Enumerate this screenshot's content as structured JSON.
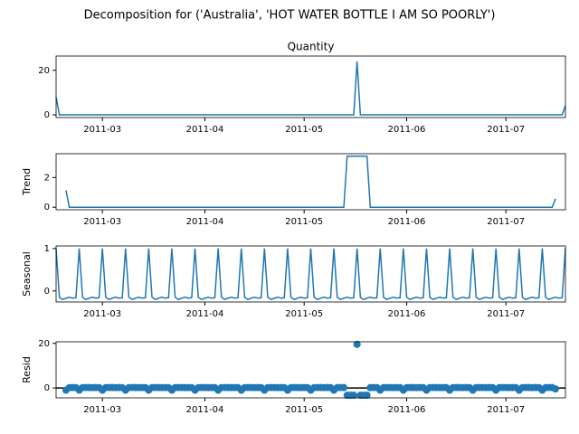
{
  "title": "Decomposition for ('Australia', 'HOT WATER BOTTLE I AM SO POORLY')",
  "chart_data": [
    {
      "type": "line",
      "title": "Quantity",
      "color": "#1f77b4",
      "x": [
        0,
        1,
        2,
        3,
        4,
        5,
        6,
        7,
        8,
        9,
        10,
        11,
        12,
        13,
        14,
        15,
        16,
        17,
        18,
        19,
        20,
        21,
        22,
        23,
        24,
        25,
        26,
        27,
        28,
        29,
        30,
        31,
        32,
        33,
        34,
        35,
        36,
        37,
        38,
        39,
        40,
        41,
        42,
        43,
        44,
        45,
        46,
        47,
        48,
        49,
        50,
        51,
        52,
        53,
        54,
        55,
        56,
        57,
        58,
        59,
        60,
        61,
        62,
        63,
        64,
        65,
        66,
        67,
        68,
        69,
        70,
        71,
        72,
        73,
        74,
        75,
        76,
        77,
        78,
        79,
        80,
        81,
        82,
        83,
        84,
        85,
        86,
        87,
        88,
        89,
        90,
        91,
        92,
        93,
        94,
        95,
        96,
        97,
        98,
        99,
        100,
        101,
        102,
        103,
        104,
        105,
        106,
        107,
        108,
        109,
        110,
        111,
        112,
        113,
        114,
        115,
        116,
        117,
        118,
        119,
        120,
        121,
        122,
        123,
        124,
        125,
        126,
        127,
        128,
        129,
        130,
        131,
        132,
        133,
        134,
        135,
        136,
        137,
        138,
        139,
        140,
        141,
        142,
        143,
        144,
        145,
        146,
        147,
        148,
        149,
        150,
        151,
        152,
        153,
        154
      ],
      "values": [
        8,
        0,
        0,
        0,
        0,
        0,
        0,
        0,
        0,
        0,
        0,
        0,
        0,
        0,
        0,
        0,
        0,
        0,
        0,
        0,
        0,
        0,
        0,
        0,
        0,
        0,
        0,
        0,
        0,
        0,
        0,
        0,
        0,
        0,
        0,
        0,
        0,
        0,
        0,
        0,
        0,
        0,
        0,
        0,
        0,
        0,
        0,
        0,
        0,
        0,
        0,
        0,
        0,
        0,
        0,
        0,
        0,
        0,
        0,
        0,
        0,
        0,
        0,
        0,
        0,
        0,
        0,
        0,
        0,
        0,
        0,
        0,
        0,
        0,
        0,
        0,
        0,
        0,
        0,
        0,
        0,
        0,
        0,
        0,
        0,
        0,
        0,
        0,
        0,
        0,
        0,
        24,
        0,
        0,
        0,
        0,
        0,
        0,
        0,
        0,
        0,
        0,
        0,
        0,
        0,
        0,
        0,
        0,
        0,
        0,
        0,
        0,
        0,
        0,
        0,
        0,
        0,
        0,
        0,
        0,
        0,
        0,
        0,
        0,
        0,
        0,
        0,
        0,
        0,
        0,
        0,
        0,
        0,
        0,
        0,
        0,
        0,
        0,
        0,
        0,
        0,
        0,
        0,
        0,
        0,
        0,
        0,
        0,
        0,
        0,
        0,
        0,
        0,
        0,
        4
      ],
      "xlim": [
        0,
        154
      ],
      "xticks": [
        {
          "value": 14,
          "label": "2011-03"
        },
        {
          "value": 45,
          "label": "2011-04"
        },
        {
          "value": 75,
          "label": "2011-05"
        },
        {
          "value": 106,
          "label": "2011-06"
        },
        {
          "value": 136,
          "label": "2011-07"
        }
      ],
      "ylim": [
        -1.2,
        26.4
      ],
      "yticks": [
        0,
        20
      ]
    },
    {
      "type": "line",
      "ylabel": "Trend",
      "color": "#1f77b4",
      "x": [
        0,
        1,
        2,
        3,
        4,
        5,
        6,
        7,
        8,
        9,
        10,
        11,
        12,
        13,
        14,
        15,
        16,
        17,
        18,
        19,
        20,
        21,
        22,
        23,
        24,
        25,
        26,
        27,
        28,
        29,
        30,
        31,
        32,
        33,
        34,
        35,
        36,
        37,
        38,
        39,
        40,
        41,
        42,
        43,
        44,
        45,
        46,
        47,
        48,
        49,
        50,
        51,
        52,
        53,
        54,
        55,
        56,
        57,
        58,
        59,
        60,
        61,
        62,
        63,
        64,
        65,
        66,
        67,
        68,
        69,
        70,
        71,
        72,
        73,
        74,
        75,
        76,
        77,
        78,
        79,
        80,
        81,
        82,
        83,
        84,
        85,
        86,
        87,
        88,
        89,
        90,
        91,
        92,
        93,
        94,
        95,
        96,
        97,
        98,
        99,
        100,
        101,
        102,
        103,
        104,
        105,
        106,
        107,
        108,
        109,
        110,
        111,
        112,
        113,
        114,
        115,
        116,
        117,
        118,
        119,
        120,
        121,
        122,
        123,
        124,
        125,
        126,
        127,
        128,
        129,
        130,
        131,
        132,
        133,
        134,
        135,
        136,
        137,
        138,
        139,
        140,
        141,
        142,
        143,
        144,
        145,
        146,
        147,
        148,
        149,
        150,
        151,
        152,
        153,
        154
      ],
      "values": [
        null,
        null,
        null,
        1.14,
        0,
        0,
        0,
        0,
        0,
        0,
        0,
        0,
        0,
        0,
        0,
        0,
        0,
        0,
        0,
        0,
        0,
        0,
        0,
        0,
        0,
        0,
        0,
        0,
        0,
        0,
        0,
        0,
        0,
        0,
        0,
        0,
        0,
        0,
        0,
        0,
        0,
        0,
        0,
        0,
        0,
        0,
        0,
        0,
        0,
        0,
        0,
        0,
        0,
        0,
        0,
        0,
        0,
        0,
        0,
        0,
        0,
        0,
        0,
        0,
        0,
        0,
        0,
        0,
        0,
        0,
        0,
        0,
        0,
        0,
        0,
        0,
        0,
        0,
        0,
        0,
        0,
        0,
        0,
        0,
        0,
        0,
        0,
        0,
        3.43,
        3.43,
        3.43,
        3.43,
        3.43,
        3.43,
        3.43,
        0,
        0,
        0,
        0,
        0,
        0,
        0,
        0,
        0,
        0,
        0,
        0,
        0,
        0,
        0,
        0,
        0,
        0,
        0,
        0,
        0,
        0,
        0,
        0,
        0,
        0,
        0,
        0,
        0,
        0,
        0,
        0,
        0,
        0,
        0,
        0,
        0,
        0,
        0,
        0,
        0,
        0,
        0,
        0,
        0,
        0,
        0,
        0,
        0,
        0,
        0,
        0,
        0,
        0,
        0,
        0,
        0.57,
        null,
        null,
        null
      ],
      "xlim": [
        0,
        154
      ],
      "xticks": [
        {
          "value": 14,
          "label": "2011-03"
        },
        {
          "value": 45,
          "label": "2011-04"
        },
        {
          "value": 75,
          "label": "2011-05"
        },
        {
          "value": 106,
          "label": "2011-06"
        },
        {
          "value": 136,
          "label": "2011-07"
        }
      ],
      "ylim": [
        -0.17,
        3.6
      ],
      "yticks": [
        0,
        2
      ]
    },
    {
      "type": "line",
      "ylabel": "Seasonal",
      "color": "#1f77b4",
      "x": [
        0,
        1,
        2,
        3,
        4,
        5,
        6,
        7,
        8,
        9,
        10,
        11,
        12,
        13,
        14,
        15,
        16,
        17,
        18,
        19,
        20,
        21,
        22,
        23,
        24,
        25,
        26,
        27,
        28,
        29,
        30,
        31,
        32,
        33,
        34,
        35,
        36,
        37,
        38,
        39,
        40,
        41,
        42,
        43,
        44,
        45,
        46,
        47,
        48,
        49,
        50,
        51,
        52,
        53,
        54,
        55,
        56,
        57,
        58,
        59,
        60,
        61,
        62,
        63,
        64,
        65,
        66,
        67,
        68,
        69,
        70,
        71,
        72,
        73,
        74,
        75,
        76,
        77,
        78,
        79,
        80,
        81,
        82,
        83,
        84,
        85,
        86,
        87,
        88,
        89,
        90,
        91,
        92,
        93,
        94,
        95,
        96,
        97,
        98,
        99,
        100,
        101,
        102,
        103,
        104,
        105,
        106,
        107,
        108,
        109,
        110,
        111,
        112,
        113,
        114,
        115,
        116,
        117,
        118,
        119,
        120,
        121,
        122,
        123,
        124,
        125,
        126,
        127,
        128,
        129,
        130,
        131,
        132,
        133,
        134,
        135,
        136,
        137,
        138,
        139,
        140,
        141,
        142,
        143,
        144,
        145,
        146,
        147,
        148,
        149,
        150,
        151,
        152,
        153,
        154
      ],
      "values": [
        1.0,
        -0.15,
        -0.2,
        -0.17,
        -0.15,
        -0.17,
        -0.16,
        1.0,
        -0.15,
        -0.2,
        -0.17,
        -0.15,
        -0.17,
        -0.16,
        1.0,
        -0.15,
        -0.2,
        -0.17,
        -0.15,
        -0.17,
        -0.16,
        1.0,
        -0.15,
        -0.2,
        -0.17,
        -0.15,
        -0.17,
        -0.16,
        1.0,
        -0.15,
        -0.2,
        -0.17,
        -0.15,
        -0.17,
        -0.16,
        1.0,
        -0.15,
        -0.2,
        -0.17,
        -0.15,
        -0.17,
        -0.16,
        1.0,
        -0.15,
        -0.2,
        -0.17,
        -0.15,
        -0.17,
        -0.16,
        1.0,
        -0.15,
        -0.2,
        -0.17,
        -0.15,
        -0.17,
        -0.16,
        1.0,
        -0.15,
        -0.2,
        -0.17,
        -0.15,
        -0.17,
        -0.16,
        1.0,
        -0.15,
        -0.2,
        -0.17,
        -0.15,
        -0.17,
        -0.16,
        1.0,
        -0.15,
        -0.2,
        -0.17,
        -0.15,
        -0.17,
        -0.16,
        1.0,
        -0.15,
        -0.2,
        -0.17,
        -0.15,
        -0.17,
        -0.16,
        1.0,
        -0.15,
        -0.2,
        -0.17,
        -0.15,
        -0.17,
        -0.16,
        1.0,
        -0.15,
        -0.2,
        -0.17,
        -0.15,
        -0.17,
        -0.16,
        1.0,
        -0.15,
        -0.2,
        -0.17,
        -0.15,
        -0.17,
        -0.16,
        1.0,
        -0.15,
        -0.2,
        -0.17,
        -0.15,
        -0.17,
        -0.16,
        1.0,
        -0.15,
        -0.2,
        -0.17,
        -0.15,
        -0.17,
        -0.16,
        1.0,
        -0.15,
        -0.2,
        -0.17,
        -0.15,
        -0.17,
        -0.16,
        1.0,
        -0.15,
        -0.2,
        -0.17,
        -0.15,
        -0.17,
        -0.16,
        1.0,
        -0.15,
        -0.2,
        -0.17,
        -0.15,
        -0.17,
        -0.16,
        1.0,
        -0.15,
        -0.2,
        -0.17,
        -0.15,
        -0.17,
        -0.16,
        1.0,
        -0.15,
        -0.2,
        -0.17,
        -0.15,
        -0.17,
        -0.16,
        1.0
      ],
      "xlim": [
        0,
        154
      ],
      "xticks": [
        {
          "value": 14,
          "label": "2011-03"
        },
        {
          "value": 45,
          "label": "2011-04"
        },
        {
          "value": 75,
          "label": "2011-05"
        },
        {
          "value": 106,
          "label": "2011-06"
        },
        {
          "value": 136,
          "label": "2011-07"
        }
      ],
      "ylim": [
        -0.26,
        1.06
      ],
      "yticks": [
        0,
        1
      ]
    },
    {
      "type": "scatter",
      "ylabel": "Resid",
      "color": "#1f77b4",
      "zero_line": true,
      "x": [
        0,
        1,
        2,
        3,
        4,
        5,
        6,
        7,
        8,
        9,
        10,
        11,
        12,
        13,
        14,
        15,
        16,
        17,
        18,
        19,
        20,
        21,
        22,
        23,
        24,
        25,
        26,
        27,
        28,
        29,
        30,
        31,
        32,
        33,
        34,
        35,
        36,
        37,
        38,
        39,
        40,
        41,
        42,
        43,
        44,
        45,
        46,
        47,
        48,
        49,
        50,
        51,
        52,
        53,
        54,
        55,
        56,
        57,
        58,
        59,
        60,
        61,
        62,
        63,
        64,
        65,
        66,
        67,
        68,
        69,
        70,
        71,
        72,
        73,
        74,
        75,
        76,
        77,
        78,
        79,
        80,
        81,
        82,
        83,
        84,
        85,
        86,
        87,
        88,
        89,
        90,
        91,
        92,
        93,
        94,
        95,
        96,
        97,
        98,
        99,
        100,
        101,
        102,
        103,
        104,
        105,
        106,
        107,
        108,
        109,
        110,
        111,
        112,
        113,
        114,
        115,
        116,
        117,
        118,
        119,
        120,
        121,
        122,
        123,
        124,
        125,
        126,
        127,
        128,
        129,
        130,
        131,
        132,
        133,
        134,
        135,
        136,
        137,
        138,
        139,
        140,
        141,
        142,
        143,
        144,
        145,
        146,
        147,
        148,
        149,
        150,
        151,
        152,
        153,
        154
      ],
      "values": [
        null,
        null,
        null,
        -0.97,
        0.15,
        0.17,
        0.16,
        -1,
        0.15,
        0.2,
        0.17,
        0.15,
        0.17,
        0.16,
        -1,
        0.15,
        0.2,
        0.17,
        0.15,
        0.17,
        0.16,
        -1,
        0.15,
        0.2,
        0.17,
        0.15,
        0.17,
        0.16,
        -1,
        0.15,
        0.2,
        0.17,
        0.15,
        0.17,
        0.16,
        -1,
        0.15,
        0.2,
        0.17,
        0.15,
        0.17,
        0.16,
        -1,
        0.15,
        0.2,
        0.17,
        0.15,
        0.17,
        0.16,
        -1,
        0.15,
        0.2,
        0.17,
        0.15,
        0.17,
        0.16,
        -1,
        0.15,
        0.2,
        0.17,
        0.15,
        0.17,
        0.16,
        -1,
        0.15,
        0.2,
        0.17,
        0.15,
        0.17,
        0.16,
        -1,
        0.15,
        0.2,
        0.17,
        0.15,
        0.17,
        0.16,
        -1,
        0.15,
        0.2,
        0.17,
        0.15,
        0.17,
        0.16,
        -1,
        0.15,
        0.2,
        0.17,
        -3.28,
        -3.26,
        -3.27,
        19.57,
        -3.28,
        -3.23,
        -3.26,
        0.15,
        0.17,
        0.16,
        -1,
        0.15,
        0.2,
        0.17,
        0.15,
        0.17,
        0.16,
        -1,
        0.15,
        0.2,
        0.17,
        0.15,
        0.17,
        0.16,
        -1,
        0.15,
        0.2,
        0.17,
        0.15,
        0.17,
        0.16,
        -1,
        0.15,
        0.2,
        0.17,
        0.15,
        0.17,
        0.16,
        -1,
        0.15,
        0.2,
        0.17,
        0.15,
        0.17,
        0.16,
        -1,
        0.15,
        0.2,
        0.17,
        0.15,
        0.17,
        0.16,
        -1,
        0.15,
        0.2,
        0.17,
        0.15,
        0.17,
        0.16,
        -1,
        0.15,
        0.2,
        0.17,
        -0.42,
        null,
        null,
        null
      ],
      "xlim": [
        0,
        154
      ],
      "xticks": [
        {
          "value": 14,
          "label": "2011-03"
        },
        {
          "value": 45,
          "label": "2011-04"
        },
        {
          "value": 75,
          "label": "2011-05"
        },
        {
          "value": 106,
          "label": "2011-06"
        },
        {
          "value": 136,
          "label": "2011-07"
        }
      ],
      "ylim": [
        -4.42,
        20.71
      ],
      "yticks": [
        0,
        20
      ]
    }
  ]
}
